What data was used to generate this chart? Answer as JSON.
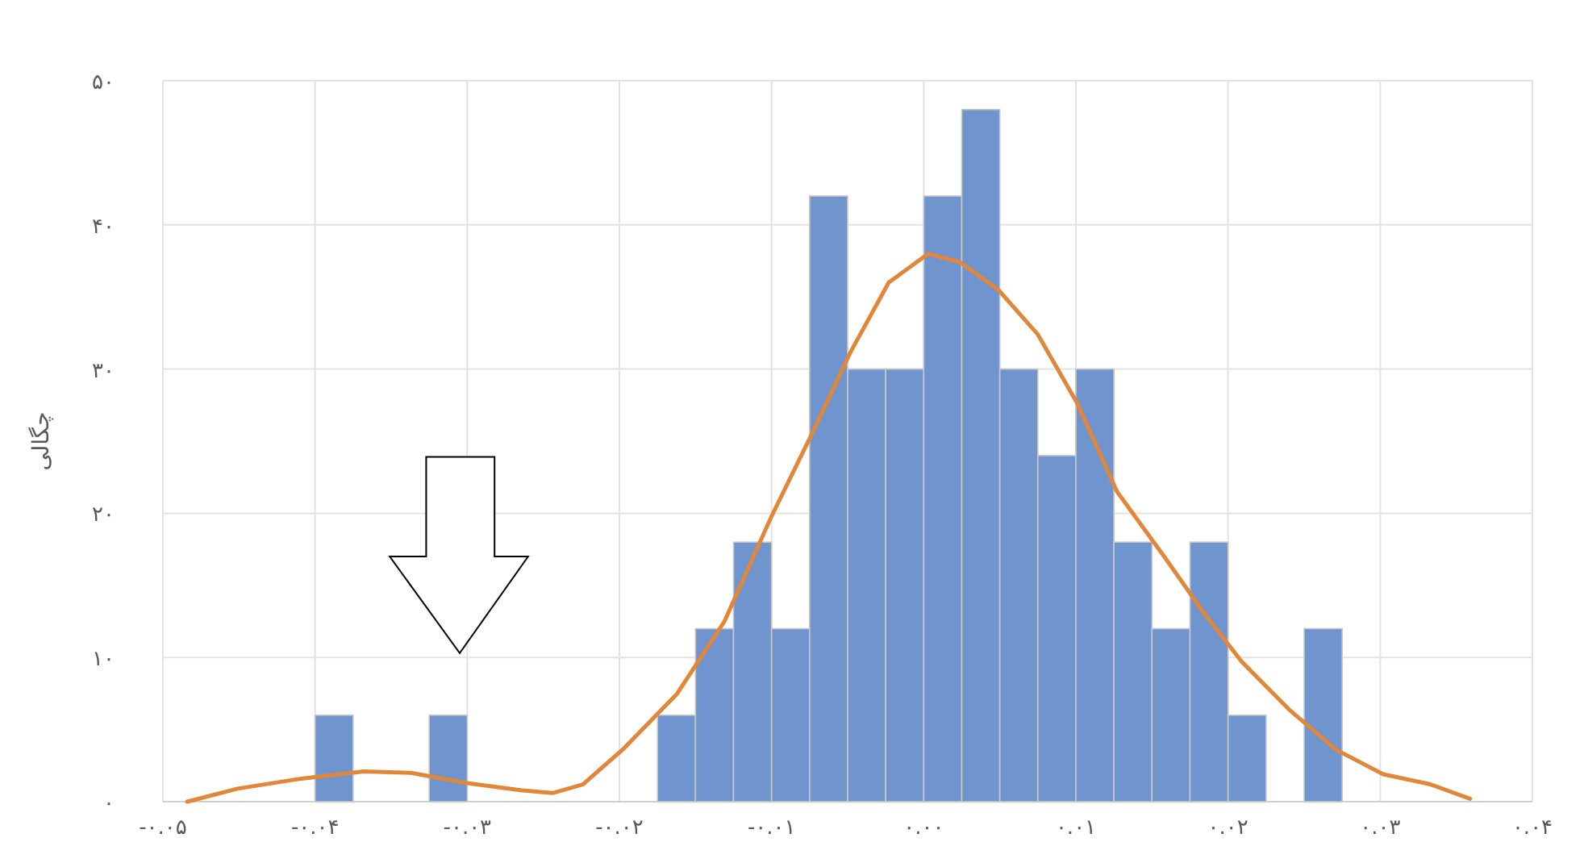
{
  "chart_data": {
    "type": "histogram",
    "ylabel": "چگالی",
    "bins": [
      -0.04,
      -0.0375,
      -0.035,
      -0.0325,
      -0.03,
      -0.0275,
      -0.025,
      -0.0225,
      -0.02,
      -0.0175,
      -0.015,
      -0.0125,
      -0.01,
      -0.0075,
      -0.005,
      -0.0025,
      0,
      0.0025,
      0.005,
      0.0075,
      0.01,
      0.0125,
      0.015,
      0.0175,
      0.02,
      0.0225,
      0.025,
      0.0275
    ],
    "values": [
      6,
      0,
      0,
      6,
      0,
      0,
      0,
      0,
      0,
      6,
      12,
      18,
      12,
      42,
      30,
      30,
      42,
      48,
      30,
      24,
      30,
      18,
      12,
      18,
      6,
      0,
      12
    ],
    "color": "#7094cd",
    "series": [
      {
        "type": "line",
        "color": "#e0873a",
        "x": [
          -0.0484,
          -0.0451,
          -0.0409,
          -0.0368,
          -0.0337,
          -0.0301,
          -0.0265,
          -0.0244,
          -0.0224,
          -0.0198,
          -0.0162,
          -0.0131,
          -0.01,
          -0.0074,
          -0.0048,
          -0.0023,
          0.0003,
          0.0024,
          0.0049,
          0.0075,
          0.0101,
          0.0127,
          0.0158,
          0.0184,
          0.0209,
          0.024,
          0.0271,
          0.0302,
          0.0333,
          0.0359
        ],
        "values": [
          0,
          0.9,
          1.6,
          2.1,
          2.0,
          1.3,
          0.8,
          0.6,
          1.2,
          3.6,
          7.5,
          12.5,
          19.8,
          25.4,
          31.2,
          36.0,
          38.0,
          37.4,
          35.5,
          32.4,
          27.6,
          21.5,
          17.0,
          13.1,
          9.7,
          6.4,
          3.6,
          1.9,
          1.2,
          0.2
        ]
      }
    ],
    "xlim": [
      -0.05,
      0.04
    ],
    "xticks": [
      {
        "value": -0.05,
        "label": "-۰.۰۵"
      },
      {
        "value": -0.04,
        "label": "-۰.۰۴"
      },
      {
        "value": -0.03,
        "label": "-۰.۰۳"
      },
      {
        "value": -0.02,
        "label": "-۰.۰۲"
      },
      {
        "value": -0.01,
        "label": "-۰.۰۱"
      },
      {
        "value": 0,
        "label": "۰.۰۰"
      },
      {
        "value": 0.01,
        "label": "۰.۰۱"
      },
      {
        "value": 0.02,
        "label": "۰.۰۲"
      },
      {
        "value": 0.03,
        "label": "۰.۰۳"
      },
      {
        "value": 0.04,
        "label": "۰.۰۴"
      }
    ],
    "ylim": [
      0,
      50
    ],
    "yticks": [
      {
        "value": 0,
        "label": "۰"
      },
      {
        "value": 10,
        "label": "۱۰"
      },
      {
        "value": 20,
        "label": "۲۰"
      },
      {
        "value": 30,
        "label": "۳۰"
      },
      {
        "value": 40,
        "label": "۴۰"
      },
      {
        "value": 50,
        "label": "۵۰"
      }
    ],
    "grid": true
  }
}
